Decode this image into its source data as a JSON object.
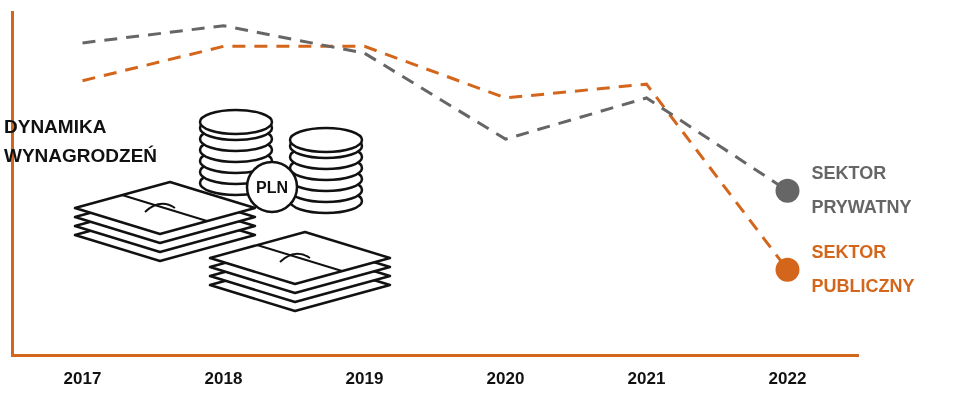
{
  "chart_data": {
    "type": "line",
    "title": "DYNAMIKA WYNAGRODZEŃ",
    "categories": [
      "2017",
      "2018",
      "2019",
      "2020",
      "2021",
      "2022"
    ],
    "series": [
      {
        "name": "SEKTOR PRYWATNY",
        "color": "#666666",
        "line_style": "dashed",
        "values": [
          91,
          96,
          88,
          63,
          75,
          48
        ]
      },
      {
        "name": "SEKTOR PUBLICZNY",
        "color": "#d4661c",
        "line_style": "dashed",
        "values": [
          80,
          90,
          90,
          75,
          79,
          25
        ]
      }
    ],
    "ylim": [
      0,
      100
    ],
    "yticks": [],
    "tick_labels": "x",
    "grid": false,
    "annotations": [
      "PLN"
    ]
  }
}
